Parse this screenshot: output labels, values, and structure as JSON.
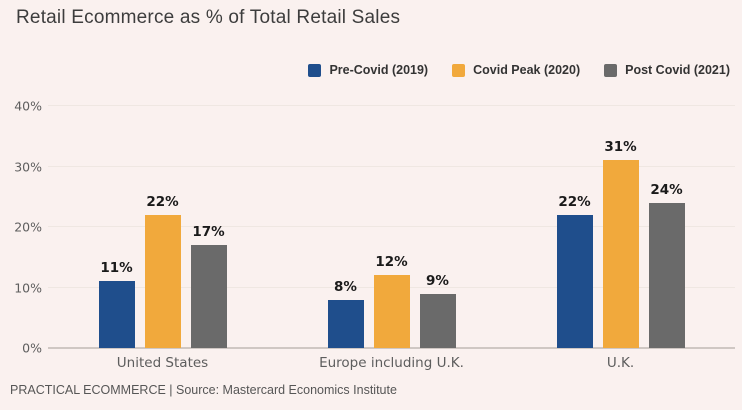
{
  "page": {
    "title": "Retail Ecommerce as % of Total Retail Sales",
    "footer": "PRACTICAL ECOMMERCE | Source: Mastercard Economics Institute"
  },
  "colors": {
    "background": "#FAF1EF",
    "pre_covid_blue": "#1F4E8C",
    "covid_peak_orange": "#F1A93C",
    "post_covid_gray": "#6A6A6A",
    "title_text": "#3D3D3D",
    "axis_text": "#5E5E5E",
    "bar_label_text": "#1A1A1A",
    "gridline": "#EFE7E2",
    "baseline": "#CFC7C3"
  },
  "legend": [
    {
      "label": "Pre-Covid (2019)",
      "color": "#1F4E8C"
    },
    {
      "label": "Covid Peak (2020)",
      "color": "#F1A93C"
    },
    {
      "label": "Post Covid (2021)",
      "color": "#6A6A6A"
    }
  ],
  "chart_data": {
    "type": "bar",
    "title": "Retail Ecommerce as % of Total Retail Sales",
    "categories": [
      "United States",
      "Europe including U.K.",
      "U.K."
    ],
    "series": [
      {
        "name": "Pre-Covid (2019)",
        "color": "#1F4E8C",
        "values": [
          11,
          8,
          22
        ]
      },
      {
        "name": "Covid Peak (2020)",
        "color": "#F1A93C",
        "values": [
          22,
          12,
          31
        ]
      },
      {
        "name": "Post Covid (2021)",
        "color": "#6A6A6A",
        "values": [
          17,
          9,
          24
        ]
      }
    ],
    "value_suffix": "%",
    "data_labels": [
      [
        "11%",
        "22%",
        "17%"
      ],
      [
        "8%",
        "12%",
        "9%"
      ],
      [
        "22%",
        "31%",
        "24%"
      ]
    ],
    "y_ticks": [
      "0%",
      "10%",
      "20%",
      "30%",
      "40%"
    ],
    "ylim": [
      0,
      40
    ],
    "grid": true,
    "legend_position": "top-right",
    "xlabel": "",
    "ylabel": ""
  }
}
